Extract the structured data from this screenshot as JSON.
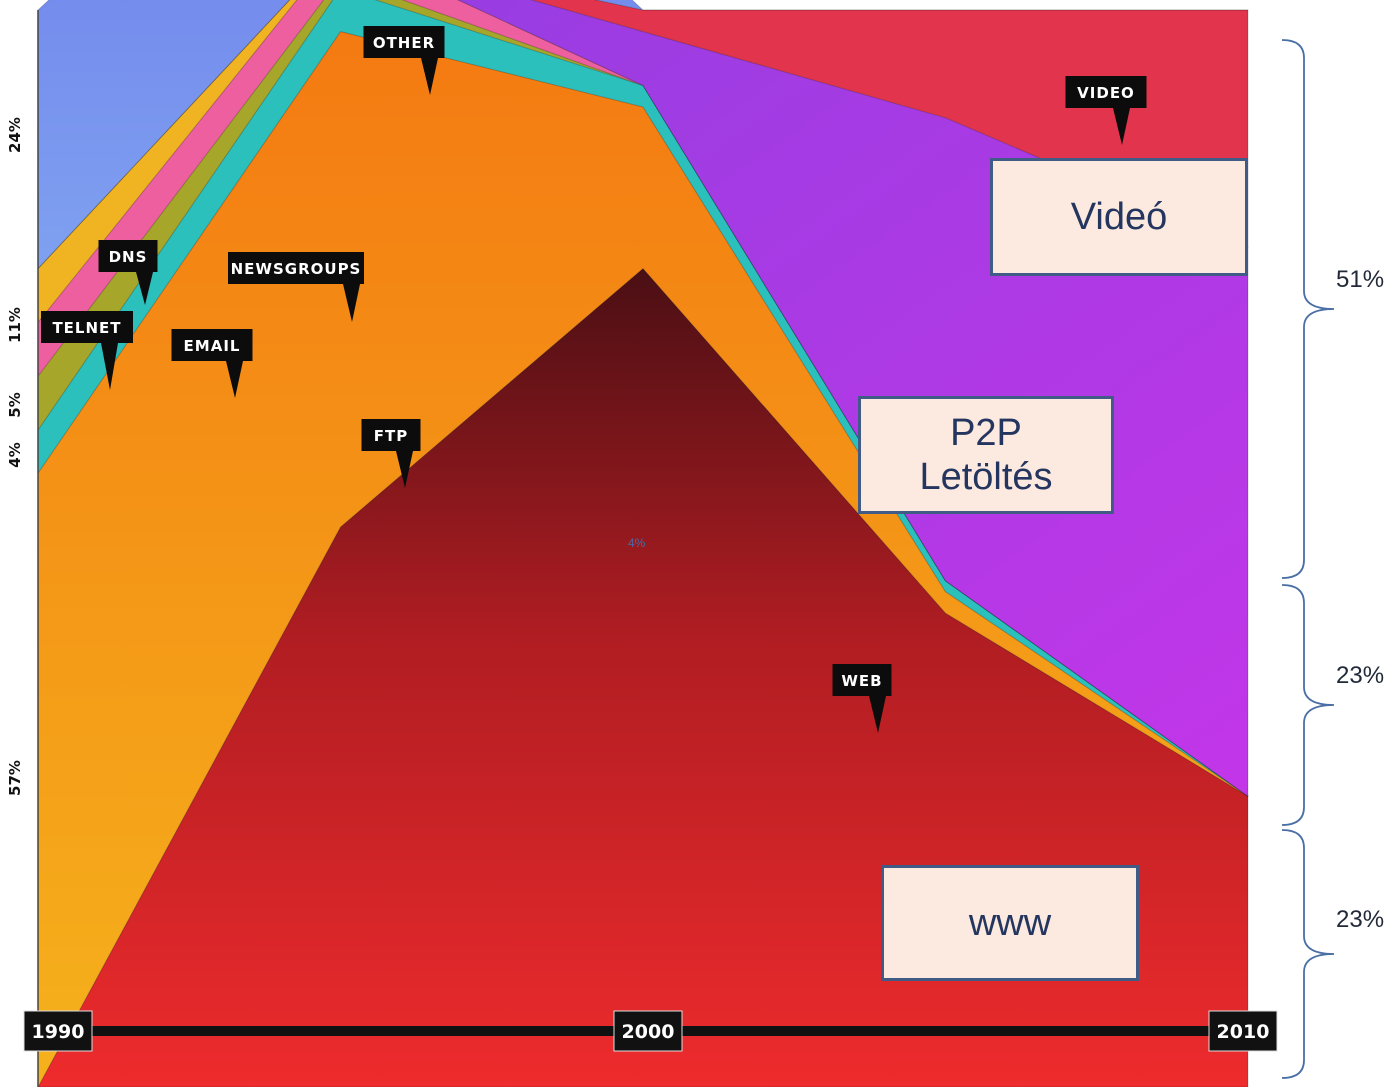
{
  "chart_data": {
    "type": "area",
    "stacked": true,
    "normalized": true,
    "x": [
      1990,
      1995,
      2000,
      2005,
      2010
    ],
    "x_tick_labels": [
      "1990",
      "2000",
      "2010"
    ],
    "y_tick_labels": [
      "57%",
      "4%",
      "5%",
      "11%",
      "24%"
    ],
    "series": [
      {
        "name": "WEB",
        "values": [
          0,
          52,
          76,
          44,
          27
        ],
        "color": "#d8262a"
      },
      {
        "name": "FTP",
        "values": [
          57,
          46,
          15,
          2,
          0
        ],
        "color": "#f08a17"
      },
      {
        "name": "EMAIL",
        "values": [
          4,
          4,
          2,
          1,
          0
        ],
        "color": "#2cc0bd"
      },
      {
        "name": "TELNET",
        "values": [
          5,
          1,
          0,
          0,
          0
        ],
        "color": "#a6a62a"
      },
      {
        "name": "NEWSGROUPS",
        "values": [
          5,
          3,
          0,
          0,
          0
        ],
        "color": "#ee5fa0"
      },
      {
        "name": "DNS",
        "values": [
          5,
          0,
          0,
          0,
          0
        ],
        "color": "#f0b422"
      },
      {
        "name": "P2P",
        "values": [
          0,
          0,
          5,
          43,
          51
        ],
        "color": "#a43fe0"
      },
      {
        "name": "VIDEO",
        "values": [
          0,
          0,
          2,
          10,
          22
        ],
        "color": "#e2344d"
      },
      {
        "name": "OTHER",
        "values": [
          24,
          20,
          0,
          0,
          0
        ],
        "color": "#7a88e8"
      }
    ],
    "callouts": [
      "OTHER",
      "VIDEO",
      "DNS",
      "NEWSGROUPS",
      "TELNET",
      "EMAIL",
      "FTP",
      "WEB"
    ],
    "annotation_mid": "4%",
    "boxes": {
      "video": "Videó",
      "p2p_line1": "P2P",
      "p2p_line2": "Letöltés",
      "www": "www"
    },
    "brackets": [
      "51%",
      "23%",
      "23%"
    ]
  }
}
